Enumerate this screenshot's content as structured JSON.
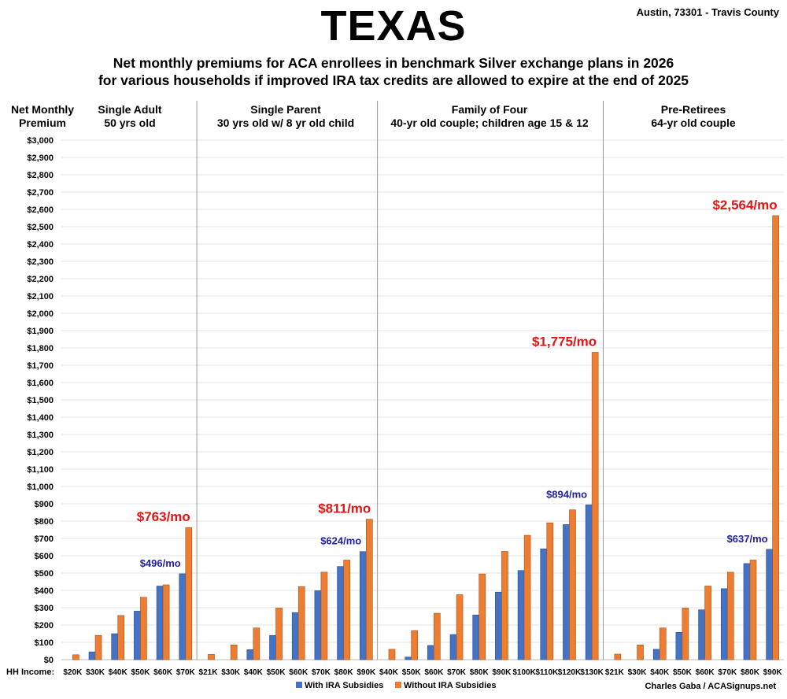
{
  "header": {
    "title": "TEXAS",
    "location": "Austin, 73301 - Travis County",
    "subtitle_line1": "Net monthly premiums for ACA enrollees in benchmark Silver exchange plans in 2026",
    "subtitle_line2": "for various households if improved IRA tax credits are allowed to expire at the end of 2025"
  },
  "credit": "Charles Gaba / ACASignups.net",
  "colors": {
    "with": "#4472c4",
    "without": "#ed7d31",
    "callout_blue": "#1f1fa8",
    "callout_red": "#e21414",
    "grid": "#e3e3e3",
    "divider": "#999999"
  },
  "chart_data": {
    "type": "bar",
    "ylabel_line1": "Net Monthly",
    "ylabel_line2": "Premium",
    "xlabel": "HH Income:",
    "ylim": [
      0,
      3000
    ],
    "ytick_step": 100,
    "grid": true,
    "legend_position": "bottom-center",
    "series_names": [
      "With IRA Subsidies",
      "Without IRA Subsidies"
    ],
    "panels": [
      {
        "title_line1": "Single Adult",
        "title_line2": "50 yrs old",
        "categories": [
          "$20K",
          "$30K",
          "$40K",
          "$50K",
          "$60K",
          "$70K"
        ],
        "with": [
          0,
          45,
          150,
          280,
          425,
          496
        ],
        "without": [
          28,
          140,
          255,
          360,
          432,
          763
        ],
        "callout_with": "$496/mo",
        "callout_without": "$763/mo"
      },
      {
        "title_line1": "Single Parent",
        "title_line2": "30 yrs old w/ 8 yr old child",
        "categories": [
          "$21K",
          "$30K",
          "$40K",
          "$50K",
          "$60K",
          "$70K",
          "$80K",
          "$90K"
        ],
        "with": [
          0,
          0,
          58,
          140,
          272,
          398,
          538,
          624
        ],
        "without": [
          30,
          85,
          183,
          298,
          422,
          505,
          575,
          811
        ],
        "callout_with": "$624/mo",
        "callout_without": "$811/mo"
      },
      {
        "title_line1": "Family of Four",
        "title_line2": "40-yr old couple; children age 15 & 12",
        "categories": [
          "$40K",
          "$50K",
          "$60K",
          "$70K",
          "$80K",
          "$90K",
          "$100K",
          "$110K",
          "$120K",
          "$130K"
        ],
        "with": [
          0,
          15,
          82,
          145,
          258,
          390,
          515,
          640,
          780,
          894
        ],
        "without": [
          60,
          168,
          268,
          375,
          495,
          625,
          718,
          790,
          865,
          1775
        ],
        "callout_with": "$894/mo",
        "callout_without": "$1,775/mo"
      },
      {
        "title_line1": "Pre-Retirees",
        "title_line2": "64-yr old couple",
        "categories": [
          "$21K",
          "$30K",
          "$40K",
          "$50K",
          "$60K",
          "$70K",
          "$80K",
          "$90K"
        ],
        "with": [
          0,
          0,
          60,
          158,
          288,
          410,
          555,
          637
        ],
        "without": [
          32,
          85,
          183,
          298,
          425,
          505,
          575,
          2564
        ],
        "callout_with": "$637/mo",
        "callout_without": "$2,564/mo"
      }
    ]
  }
}
